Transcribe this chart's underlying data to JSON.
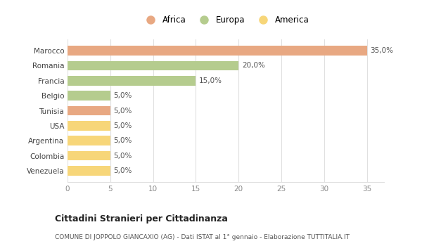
{
  "categories": [
    "Venezuela",
    "Colombia",
    "Argentina",
    "USA",
    "Tunisia",
    "Belgio",
    "Francia",
    "Romania",
    "Marocco"
  ],
  "values": [
    5,
    5,
    5,
    5,
    5,
    5,
    15,
    20,
    35
  ],
  "colors": [
    "#f7d679",
    "#f7d679",
    "#f7d679",
    "#f7d679",
    "#e8a882",
    "#b5cc8e",
    "#b5cc8e",
    "#b5cc8e",
    "#e8a882"
  ],
  "labels": [
    "5,0%",
    "5,0%",
    "5,0%",
    "5,0%",
    "5,0%",
    "5,0%",
    "15,0%",
    "20,0%",
    "35,0%"
  ],
  "xlim": [
    0,
    37
  ],
  "xticks": [
    0,
    5,
    10,
    15,
    20,
    25,
    30,
    35
  ],
  "legend": [
    {
      "label": "Africa",
      "color": "#e8a882"
    },
    {
      "label": "Europa",
      "color": "#b5cc8e"
    },
    {
      "label": "America",
      "color": "#f7d679"
    }
  ],
  "title": "Cittadini Stranieri per Cittadinanza",
  "subtitle": "COMUNE DI JOPPOLO GIANCAXIO (AG) - Dati ISTAT al 1° gennaio - Elaborazione TUTTITALIA.IT",
  "background_color": "#ffffff",
  "grid_color": "#e0e0e0"
}
